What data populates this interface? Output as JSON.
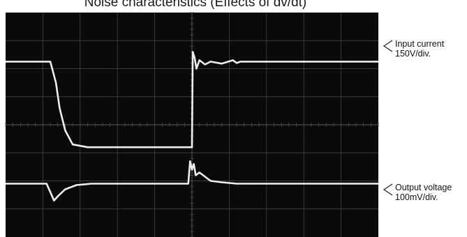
{
  "chart_data": {
    "type": "line",
    "title": "Noise characteristics  (Effects of dv/dt)",
    "grid": true,
    "colors": {
      "screen": "#0a0a0a",
      "grid": "#4a4a4a",
      "trace": "#eeeeee"
    },
    "divisions": {
      "x": 10,
      "y": 8
    },
    "series": [
      {
        "name": "Input current",
        "scale": "150V/div.",
        "x": [
          0,
          1.2,
          1.35,
          1.45,
          1.6,
          1.8,
          2.2,
          3.0,
          4.0,
          5.0,
          5.02,
          5.07,
          5.12,
          5.2,
          5.35,
          5.5,
          5.8,
          6.1,
          6.2,
          6.3,
          7.0,
          8.0,
          9.0,
          10.0
        ],
        "y": [
          6.25,
          6.25,
          5.5,
          4.6,
          3.8,
          3.3,
          3.2,
          3.2,
          3.2,
          3.2,
          6.6,
          6.4,
          6.0,
          6.3,
          6.15,
          6.25,
          6.18,
          6.3,
          6.2,
          6.25,
          6.25,
          6.25,
          6.25,
          6.25
        ]
      },
      {
        "name": "Output voltage",
        "scale": "100mV/div.",
        "x": [
          0,
          1.1,
          1.2,
          1.3,
          1.4,
          1.6,
          1.9,
          2.3,
          3.0,
          4.0,
          4.9,
          4.95,
          5.0,
          5.05,
          5.1,
          5.2,
          5.35,
          5.5,
          5.8,
          6.2,
          7.0,
          8.0,
          9.0,
          10.0
        ],
        "y": [
          1.9,
          1.9,
          1.6,
          1.3,
          1.45,
          1.7,
          1.85,
          1.9,
          1.9,
          1.9,
          1.9,
          2.7,
          2.4,
          2.6,
          2.2,
          2.3,
          2.15,
          2.0,
          1.95,
          1.9,
          1.9,
          1.9,
          1.9,
          1.9
        ]
      }
    ]
  }
}
